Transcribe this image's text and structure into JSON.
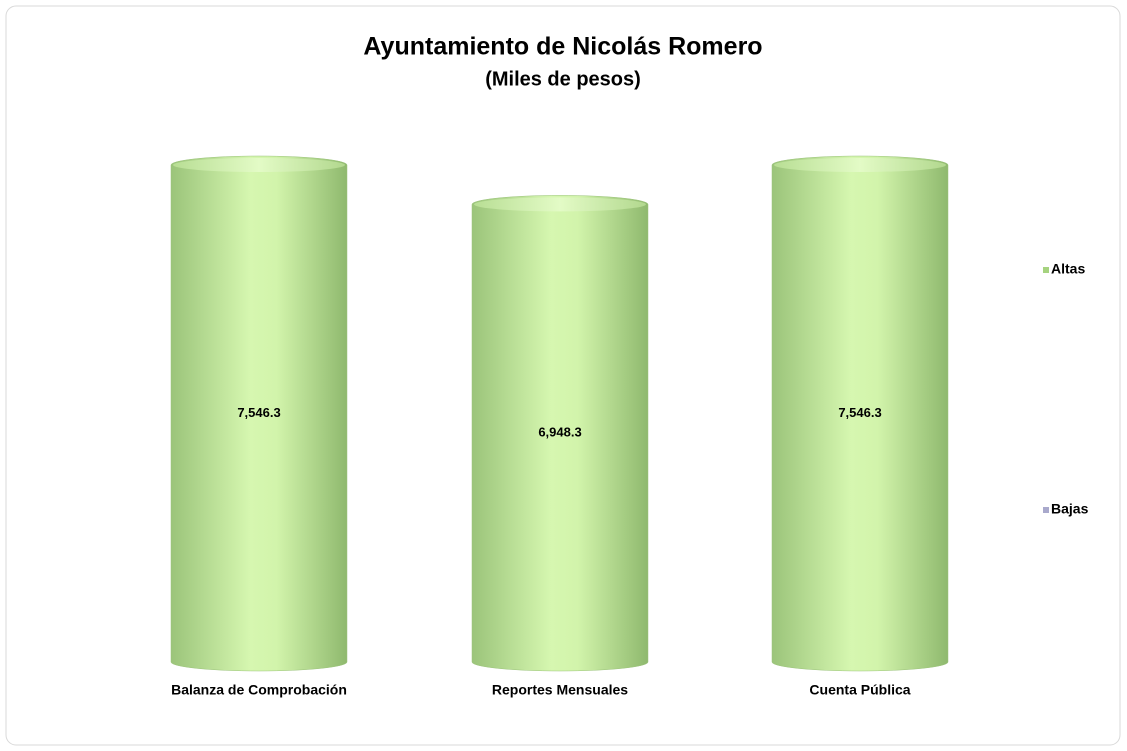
{
  "chart_data": {
    "type": "bar",
    "title": "Ayuntamiento de Nicolás Romero",
    "subtitle": "(Miles de pesos)",
    "categories": [
      "Balanza de Comprobación",
      "Reportes Mensuales",
      "Cuenta Pública"
    ],
    "series": [
      {
        "name": "Altas",
        "color": "#a6d37f",
        "values": [
          7546.3,
          6948.3,
          7546.3
        ],
        "value_labels": [
          "7,546.3",
          "6,948.3",
          "7,546.3"
        ]
      },
      {
        "name": "Bajas",
        "color": "#a9a9cc",
        "values": [
          null,
          null,
          null
        ]
      }
    ],
    "legend": "right"
  }
}
